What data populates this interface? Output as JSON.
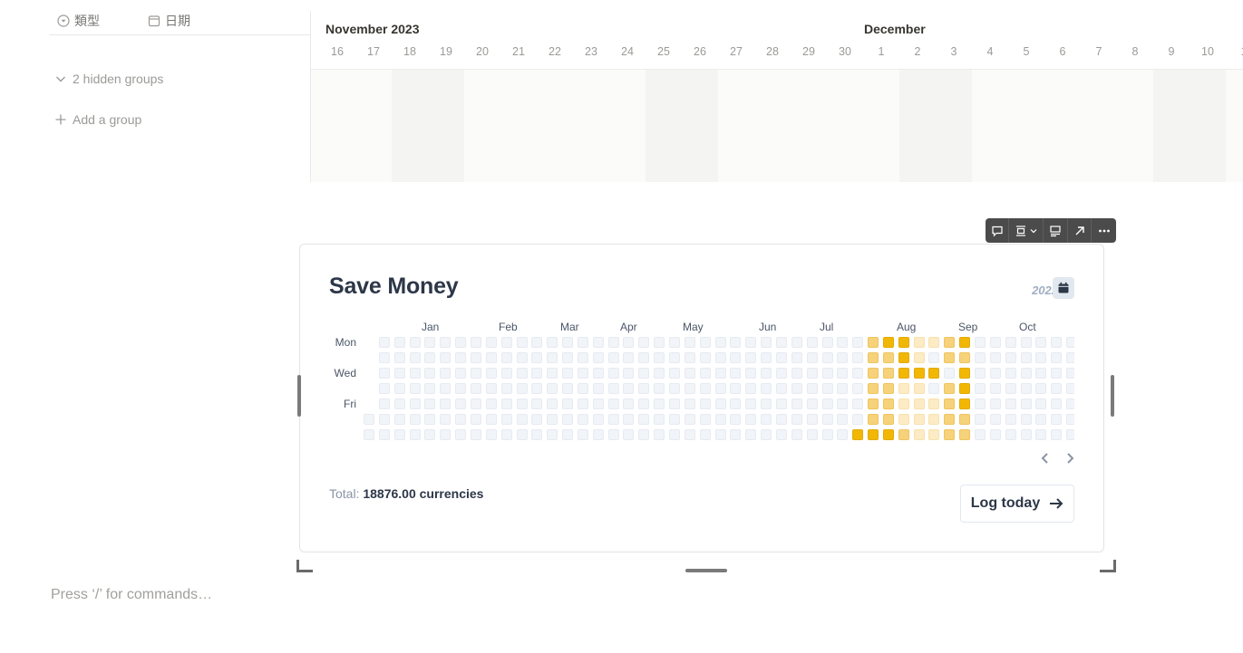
{
  "properties": [
    {
      "label": "類型",
      "icon": "select-circle-icon"
    },
    {
      "label": "日期",
      "icon": "calendar-icon"
    }
  ],
  "groups": {
    "hidden_label": "2 hidden groups",
    "add_label": "Add a group"
  },
  "timeline": {
    "months": [
      "November 2023",
      "December"
    ],
    "days": [
      "16",
      "17",
      "18",
      "19",
      "20",
      "21",
      "22",
      "23",
      "24",
      "25",
      "26",
      "27",
      "28",
      "29",
      "30",
      "1",
      "2",
      "3",
      "4",
      "5",
      "6",
      "7",
      "8",
      "9",
      "10",
      "1"
    ]
  },
  "toolbar": {
    "buttons": [
      "comment-icon",
      "align-icon",
      "caption-icon",
      "open-link-icon",
      "more-icon"
    ]
  },
  "widget": {
    "title": "Save Money",
    "year": "2022",
    "months": [
      "Jan",
      "Feb",
      "Mar",
      "Apr",
      "May",
      "Jun",
      "Jul",
      "Aug",
      "Sep",
      "Oct"
    ],
    "day_labels": [
      "Mon",
      "Wed",
      "Fri"
    ],
    "total_label": "Total:",
    "total_value": "18876.00 currencies",
    "log_button": "Log today",
    "colors": {
      "empty": "#f1f4f8",
      "light": "#fcebc4",
      "mid": "#f6d27a",
      "dark": "#f2b705"
    },
    "heat": [
      {
        "week": 32,
        "levels": [
          0,
          0,
          0,
          0,
          0,
          0,
          3
        ]
      },
      {
        "week": 33,
        "levels": [
          2,
          2,
          2,
          2,
          2,
          2,
          3
        ]
      },
      {
        "week": 34,
        "levels": [
          3,
          2,
          2,
          2,
          2,
          2,
          3
        ]
      },
      {
        "week": 35,
        "levels": [
          3,
          3,
          3,
          1,
          1,
          1,
          2
        ]
      },
      {
        "week": 36,
        "levels": [
          1,
          1,
          3,
          1,
          1,
          1,
          1
        ]
      },
      {
        "week": 37,
        "levels": [
          1,
          0,
          3,
          0,
          1,
          1,
          1
        ]
      },
      {
        "week": 38,
        "levels": [
          2,
          2,
          0,
          2,
          2,
          2,
          2
        ]
      },
      {
        "week": 39,
        "levels": [
          3,
          2,
          3,
          3,
          3,
          2,
          2
        ]
      }
    ]
  },
  "placeholder": "Press ‘/’ for commands…"
}
